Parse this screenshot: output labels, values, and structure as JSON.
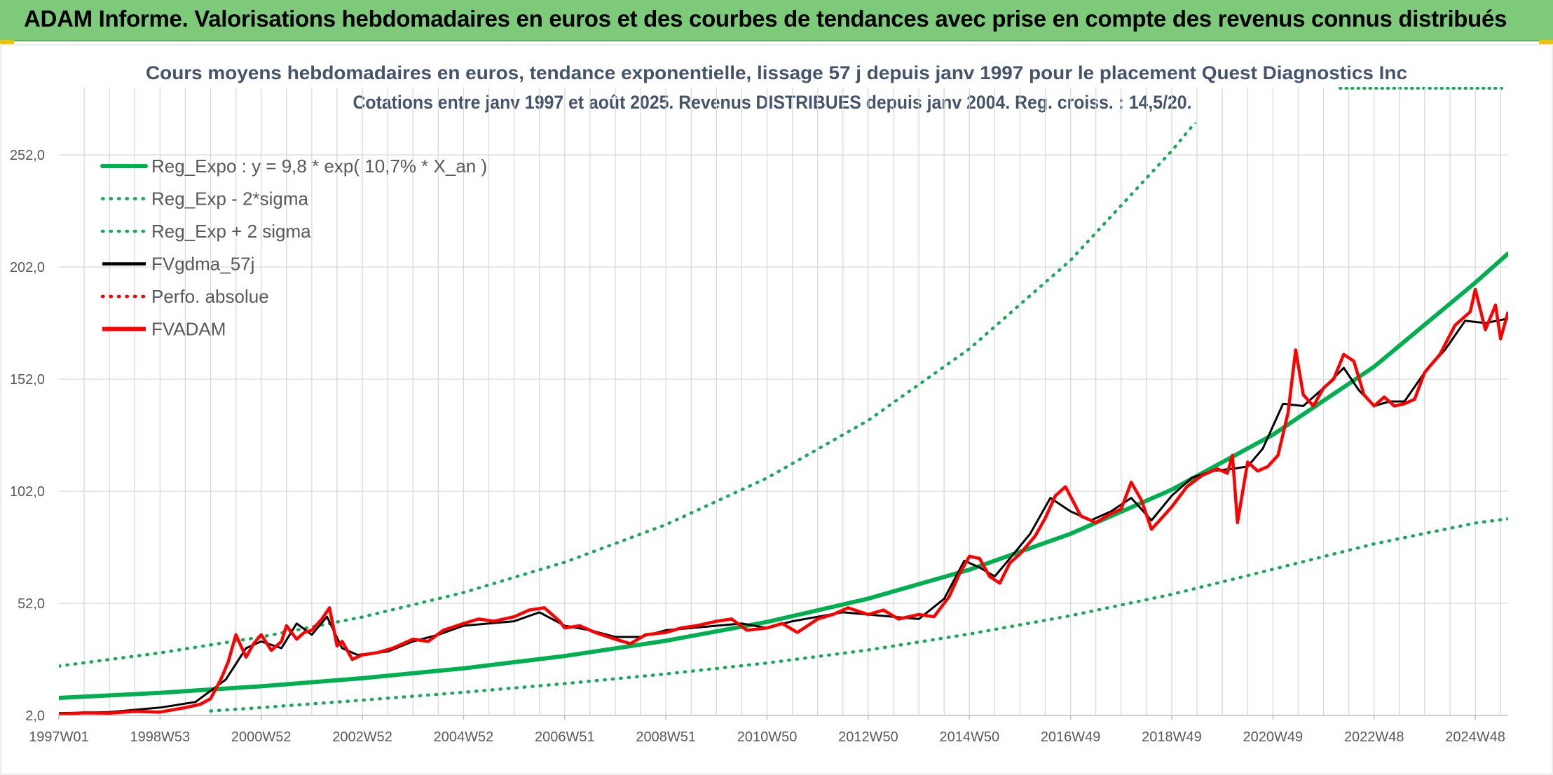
{
  "header": {
    "banner": "ADAM Informe. Valorisations hebdomadaires en euros et des courbes de tendances avec prise en compte des revenus connus distribués"
  },
  "colors": {
    "banner_bg": "#7dcb7a",
    "green": "#00b050",
    "dotted_green": "#1aa95a",
    "black": "#000000",
    "red": "#ff0000"
  },
  "chart_data": {
    "type": "line",
    "title": "Cours moyens hebdomadaires en euros, tendance exponentielle, lissage 57 j depuis janv 1997 pour le placement Quest Diagnostics Inc",
    "subtitle": "Cotations entre janv 1997 et août 2025. Revenus DISTRIBUES depuis janv 2004. Reg. croiss. : 14,5/20.",
    "xlabel": "",
    "ylabel": "",
    "ylim": [
      2,
      282
    ],
    "y_ticks": [
      "2,0",
      "52,0",
      "102,0",
      "152,0",
      "202,0",
      "252,0"
    ],
    "x_range": [
      1997.0,
      2025.65
    ],
    "x_ticks": [
      {
        "label": "1997W01",
        "x": 1997.0
      },
      {
        "label": "1998W53",
        "x": 1999.0
      },
      {
        "label": "2000W52",
        "x": 2001.0
      },
      {
        "label": "2002W52",
        "x": 2003.0
      },
      {
        "label": "2004W52",
        "x": 2005.0
      },
      {
        "label": "2006W51",
        "x": 2007.0
      },
      {
        "label": "2008W51",
        "x": 2009.0
      },
      {
        "label": "2010W50",
        "x": 2011.0
      },
      {
        "label": "2012W50",
        "x": 2013.0
      },
      {
        "label": "2014W50",
        "x": 2015.0
      },
      {
        "label": "2016W49",
        "x": 2017.0
      },
      {
        "label": "2018W49",
        "x": 2019.0
      },
      {
        "label": "2020W49",
        "x": 2021.0
      },
      {
        "label": "2022W48",
        "x": 2023.0
      },
      {
        "label": "2024W48",
        "x": 2025.0
      }
    ],
    "grid": true,
    "legend_position": "top-left",
    "series": [
      {
        "name": "Reg_Expo : y = 9,8 * exp( 10,7% *  X_an )",
        "style": "solid",
        "color": "#00b050",
        "x": [
          1997.0,
          1999.0,
          2001.0,
          2003.0,
          2005.0,
          2007.0,
          2009.0,
          2011.0,
          2013.0,
          2015.0,
          2017.0,
          2019.0,
          2021.0,
          2023.0,
          2025.0,
          2025.65
        ],
        "y": [
          9.8,
          12.1,
          15.0,
          18.6,
          23.0,
          28.5,
          35.3,
          43.7,
          54.1,
          67.0,
          83.0,
          102.7,
          127.2,
          157.5,
          195.0,
          208.0
        ]
      },
      {
        "name": "Reg_Exp - 2*sigma",
        "style": "dotted",
        "color": "#1aa95a",
        "x": [
          2000.0,
          2001.0,
          2003.0,
          2005.0,
          2007.0,
          2009.0,
          2011.0,
          2013.0,
          2015.0,
          2017.0,
          2019.0,
          2021.0,
          2023.0,
          2025.0,
          2025.65
        ],
        "y": [
          4.0,
          5.5,
          8.8,
          12.3,
          16.2,
          20.5,
          25.4,
          31.2,
          38.3,
          46.5,
          56.0,
          67.2,
          78.5,
          87.8,
          89.7
        ]
      },
      {
        "name": "Reg_Exp + 2 sigma",
        "style": "dotted",
        "color": "#1aa95a",
        "x": [
          1997.0,
          1999.0,
          2001.0,
          2003.0,
          2005.0,
          2007.0,
          2009.0,
          2011.0,
          2013.0,
          2015.0,
          2017.0,
          2019.0,
          2020.0
        ],
        "y": [
          24.0,
          29.9,
          37.0,
          45.9,
          56.8,
          70.3,
          87.1,
          107.9,
          133.6,
          165.5,
          205.0,
          253.8,
          281.0
        ]
      },
      {
        "name": "FVgdma_57j",
        "style": "solid",
        "color": "#000000",
        "x": [
          1997.0,
          1998.0,
          1999.0,
          1999.7,
          2000.3,
          2000.7,
          2001.0,
          2001.4,
          2001.7,
          2002.0,
          2002.3,
          2002.6,
          2002.9,
          2003.5,
          2004.0,
          2004.5,
          2005.0,
          2005.5,
          2006.0,
          2006.5,
          2007.0,
          2007.5,
          2008.0,
          2008.5,
          2009.0,
          2009.5,
          2010.0,
          2010.5,
          2011.0,
          2011.5,
          2012.0,
          2012.5,
          2013.0,
          2013.5,
          2014.0,
          2014.5,
          2014.9,
          2015.2,
          2015.5,
          2015.8,
          2016.2,
          2016.6,
          2017.0,
          2017.4,
          2017.8,
          2018.2,
          2018.6,
          2019.0,
          2019.4,
          2019.8,
          2020.2,
          2020.5,
          2020.8,
          2021.2,
          2021.6,
          2022.0,
          2022.4,
          2022.7,
          2023.0,
          2023.3,
          2023.6,
          2024.0,
          2024.4,
          2024.8,
          2025.2,
          2025.65
        ],
        "y": [
          3.0,
          3.5,
          5.5,
          8.0,
          18.0,
          32.0,
          35.0,
          32.0,
          43.0,
          38.0,
          46.0,
          32.0,
          29.0,
          30.5,
          35.0,
          38.0,
          42.0,
          43.0,
          44.0,
          48.0,
          42.0,
          40.0,
          37.0,
          37.0,
          40.0,
          41.0,
          42.0,
          43.0,
          41.0,
          44.0,
          46.0,
          48.0,
          47.0,
          46.0,
          45.0,
          54.0,
          71.0,
          68.0,
          64.0,
          72.0,
          83.0,
          99.0,
          93.0,
          89.0,
          93.0,
          99.0,
          89.0,
          100.0,
          108.0,
          111.0,
          112.0,
          113.0,
          121.0,
          141.0,
          140.0,
          148.0,
          157.0,
          147.0,
          140.0,
          142.0,
          142.0,
          155.0,
          165.0,
          178.0,
          177.0,
          179.0
        ]
      },
      {
        "name": "Perfo. absolue",
        "style": "dotted",
        "color": "#ff0000",
        "x": [],
        "y": []
      },
      {
        "name": "FVADAM",
        "style": "solid",
        "color": "#ff0000",
        "x": [
          1997.0,
          1997.5,
          1998.0,
          1998.5,
          1999.0,
          1999.5,
          1999.8,
          2000.0,
          2000.2,
          2000.35,
          2000.5,
          2000.7,
          2000.85,
          2001.0,
          2001.2,
          2001.4,
          2001.5,
          2001.7,
          2001.85,
          2002.0,
          2002.2,
          2002.35,
          2002.5,
          2002.6,
          2002.8,
          2003.0,
          2003.3,
          2003.6,
          2004.0,
          2004.3,
          2004.6,
          2005.0,
          2005.3,
          2005.6,
          2006.0,
          2006.3,
          2006.6,
          2006.9,
          2007.0,
          2007.3,
          2007.6,
          2008.0,
          2008.3,
          2008.6,
          2009.0,
          2009.3,
          2009.6,
          2010.0,
          2010.3,
          2010.6,
          2011.0,
          2011.3,
          2011.6,
          2012.0,
          2012.3,
          2012.6,
          2013.0,
          2013.3,
          2013.6,
          2014.0,
          2014.3,
          2014.6,
          2014.8,
          2015.0,
          2015.2,
          2015.4,
          2015.6,
          2015.8,
          2016.0,
          2016.3,
          2016.5,
          2016.7,
          2016.9,
          2017.2,
          2017.5,
          2017.8,
          2018.0,
          2018.2,
          2018.4,
          2018.6,
          2018.8,
          2019.0,
          2019.3,
          2019.6,
          2019.9,
          2020.1,
          2020.2,
          2020.3,
          2020.5,
          2020.7,
          2020.9,
          2021.1,
          2021.3,
          2021.45,
          2021.6,
          2021.8,
          2022.0,
          2022.2,
          2022.4,
          2022.6,
          2022.8,
          2023.0,
          2023.2,
          2023.4,
          2023.6,
          2023.8,
          2024.0,
          2024.3,
          2024.6,
          2024.9,
          2025.0,
          2025.2,
          2025.4,
          2025.5,
          2025.65
        ],
        "y": [
          2.5,
          3.2,
          3.0,
          3.8,
          3.5,
          5.5,
          7.0,
          9.5,
          18.0,
          26.0,
          38.0,
          28.0,
          34.0,
          38.0,
          31.0,
          35.0,
          42.0,
          36.0,
          39.0,
          40.0,
          45.0,
          50.0,
          33.0,
          35.0,
          27.0,
          29.0,
          30.0,
          32.0,
          36.0,
          35.0,
          40.0,
          43.0,
          45.0,
          44.0,
          46.0,
          49.0,
          50.0,
          44.0,
          41.0,
          42.0,
          39.0,
          36.0,
          34.0,
          38.0,
          39.0,
          41.0,
          42.0,
          44.0,
          45.0,
          40.0,
          41.0,
          43.0,
          39.0,
          45.0,
          47.0,
          50.0,
          47.0,
          49.0,
          45.0,
          47.0,
          46.0,
          55.0,
          65.0,
          73.0,
          72.0,
          64.0,
          61.0,
          70.0,
          74.0,
          82.0,
          90.0,
          100.0,
          104.0,
          91.0,
          88.0,
          92.0,
          94.0,
          106.0,
          98.0,
          85.0,
          90.0,
          95.0,
          104.0,
          109.0,
          112.0,
          110.0,
          118.0,
          88.0,
          115.0,
          111.0,
          113.0,
          118.0,
          137.0,
          165.0,
          145.0,
          140.0,
          148.0,
          152.0,
          163.0,
          160.0,
          145.0,
          140.0,
          144.0,
          140.0,
          141.0,
          143.0,
          155.0,
          163.0,
          176.0,
          182.0,
          192.0,
          174.0,
          185.0,
          170.0,
          182.0
        ]
      }
    ]
  }
}
